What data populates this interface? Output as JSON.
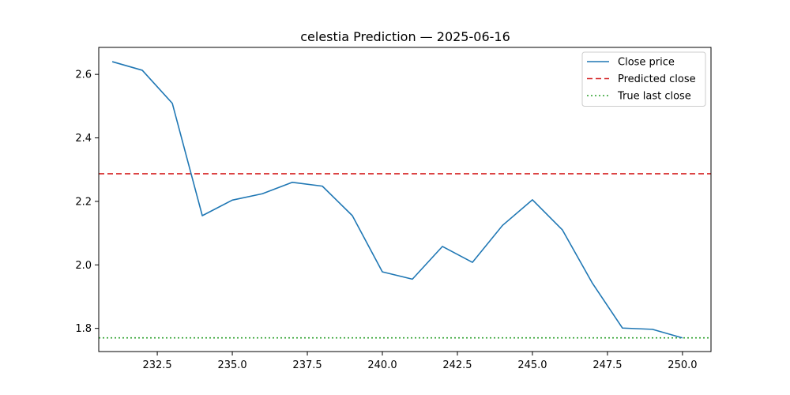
{
  "chart_data": {
    "type": "line",
    "title": "celestia Prediction — 2025-06-16",
    "xlabel": "",
    "ylabel": "",
    "xlim": [
      230.55,
      250.95
    ],
    "ylim": [
      1.727,
      2.685
    ],
    "x_ticks": [
      232.5,
      235.0,
      237.5,
      240.0,
      242.5,
      245.0,
      247.5,
      250.0
    ],
    "x_tick_labels": [
      "232.5",
      "235.0",
      "237.5",
      "240.0",
      "242.5",
      "245.0",
      "247.5",
      "250.0"
    ],
    "y_ticks": [
      1.8,
      2.0,
      2.2,
      2.4,
      2.6
    ],
    "y_tick_labels": [
      "1.8",
      "2.0",
      "2.2",
      "2.4",
      "2.6"
    ],
    "grid": false,
    "legend_position": "top-right",
    "series": [
      {
        "name": "Close price",
        "color": "#1f77b4",
        "style": "solid",
        "x": [
          231,
          232,
          233,
          234,
          235,
          236,
          237,
          238,
          239,
          240,
          241,
          242,
          243,
          244,
          245,
          246,
          247,
          248,
          249,
          250
        ],
        "values": [
          2.64,
          2.613,
          2.509,
          2.155,
          2.204,
          2.224,
          2.26,
          2.248,
          2.155,
          1.978,
          1.955,
          2.058,
          2.008,
          2.124,
          2.205,
          2.11,
          1.942,
          1.801,
          1.797,
          1.77
        ]
      }
    ],
    "hlines": [
      {
        "name": "Predicted close",
        "y": 2.287,
        "color": "#d62728",
        "style": "dashed"
      },
      {
        "name": "True last close",
        "y": 1.77,
        "color": "#2ca02c",
        "style": "dotted"
      }
    ]
  }
}
